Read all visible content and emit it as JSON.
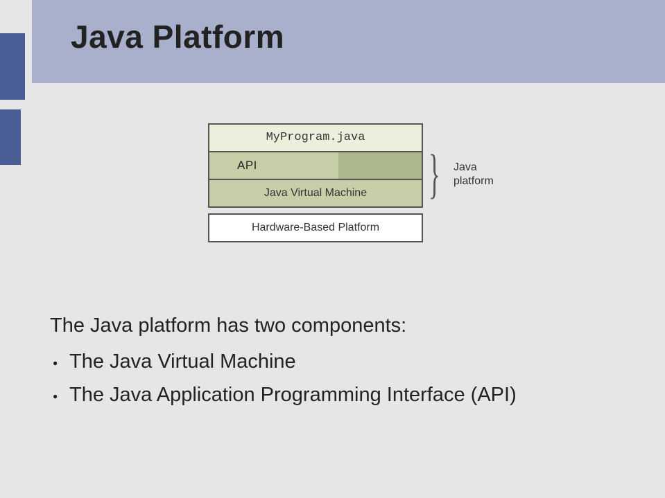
{
  "title": "Java Platform",
  "diagram": {
    "program_label": "MyProgram.java",
    "api_label": "API",
    "jvm_label": "Java Virtual Machine",
    "hw_label": "Hardware-Based Platform",
    "brace_text_line1": "Java",
    "brace_text_line2": "platform",
    "colors": {
      "program_bg": "#ecefdc",
      "api_bg": "#c7cfa8",
      "jvm_bg": "#c7cfa8",
      "hw_bg": "#ffffff",
      "border": "#555555"
    }
  },
  "body": {
    "intro": "The Java platform has two components:",
    "bullet1": "The Java Virtual Machine",
    "bullet2": "The Java Application Programming Interface (API)"
  },
  "slide_colors": {
    "page_bg": "#e6e6e6",
    "header_bg": "#a8b0cc",
    "side_block": "#4a5e95",
    "text": "#222222"
  },
  "fonts": {
    "title_size_pt": 34,
    "body_size_pt": 22,
    "diagram_label_pt": 13
  }
}
